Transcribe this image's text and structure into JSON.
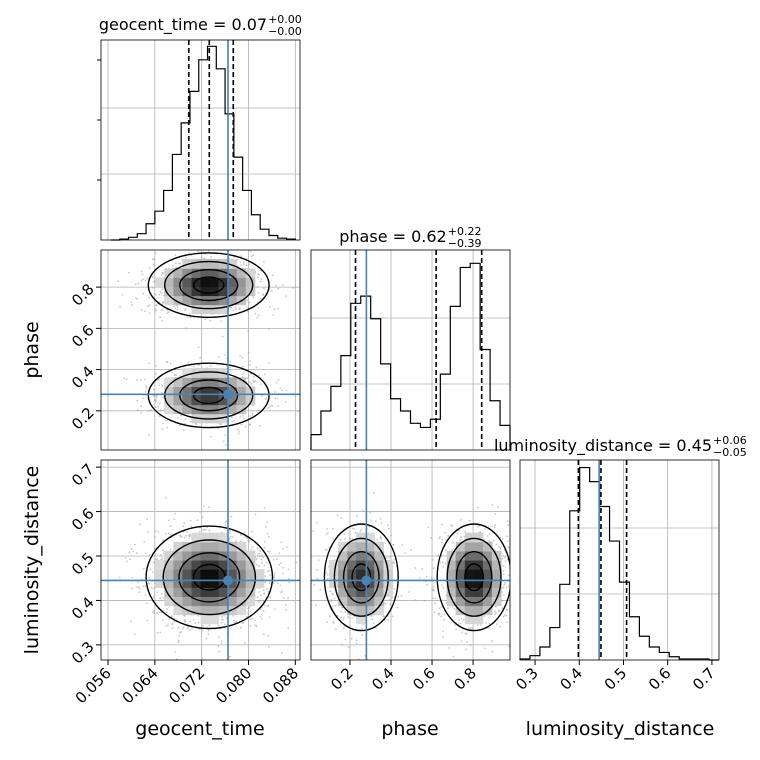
{
  "chart_data": {
    "type": "corner",
    "parameters": [
      "geocent_time",
      "phase",
      "luminosity_distance"
    ],
    "truths": {
      "geocent_time": 0.0765,
      "phase": 0.28,
      "luminosity_distance": 0.445
    },
    "titles": [
      {
        "param": "geocent_time",
        "name": "geocent_time",
        "median": "0.07",
        "plus": "+0.00",
        "minus": "−0.00"
      },
      {
        "param": "phase",
        "name": "phase",
        "median": "0.62",
        "plus": "+0.22",
        "minus": "−0.39"
      },
      {
        "param": "luminosity_distance",
        "name": "luminosity_distance",
        "median": "0.45",
        "plus": "+0.06",
        "minus": "−0.05"
      }
    ],
    "axes": {
      "geocent_time": {
        "range": [
          0.0548,
          0.0888
        ],
        "ticks": [
          "0.056",
          "0.064",
          "0.072",
          "0.080",
          "0.088"
        ]
      },
      "phase": {
        "range": [
          0.01,
          0.98
        ],
        "ticks": [
          "0.2",
          "0.4",
          "0.6",
          "0.8"
        ]
      },
      "luminosity_distance": {
        "range": [
          0.266,
          0.716
        ],
        "ticks": [
          "0.3",
          "0.4",
          "0.5",
          "0.6",
          "0.7"
        ]
      }
    },
    "histograms": [
      {
        "param": "geocent_time",
        "bin_edges": [
          0.0565,
          0.058,
          0.0595,
          0.061,
          0.0625,
          0.064,
          0.0655,
          0.067,
          0.0685,
          0.07,
          0.0715,
          0.073,
          0.0745,
          0.076,
          0.0775,
          0.079,
          0.0805,
          0.082,
          0.0835,
          0.085,
          0.0865,
          0.088
        ],
        "counts": [
          0,
          1,
          3,
          7,
          18,
          32,
          55,
          95,
          130,
          165,
          200,
          215,
          190,
          140,
          92,
          55,
          28,
          12,
          5,
          2,
          1
        ],
        "quantiles": [
          0.0698,
          0.0733,
          0.0774
        ],
        "max": 222
      },
      {
        "param": "phase",
        "bin_edges": [
          0.01,
          0.0585,
          0.107,
          0.1555,
          0.204,
          0.2525,
          0.301,
          0.3495,
          0.398,
          0.4465,
          0.495,
          0.5435,
          0.592,
          0.6405,
          0.689,
          0.7375,
          0.786,
          0.8345,
          0.883,
          0.9315,
          0.98
        ],
        "counts": [
          15,
          38,
          62,
          92,
          143,
          150,
          128,
          84,
          50,
          38,
          26,
          22,
          30,
          74,
          140,
          178,
          182,
          98,
          48,
          24
        ],
        "quantiles": [
          0.227,
          0.62,
          0.842
        ],
        "max": 195
      },
      {
        "param": "luminosity_distance",
        "bin_edges": [
          0.266,
          0.2885,
          0.311,
          0.3335,
          0.356,
          0.3785,
          0.401,
          0.4235,
          0.446,
          0.4685,
          0.491,
          0.5135,
          0.536,
          0.5585,
          0.581,
          0.6035,
          0.626,
          0.6485,
          0.671,
          0.6935,
          0.716
        ],
        "counts": [
          1,
          4,
          12,
          30,
          70,
          138,
          178,
          165,
          142,
          110,
          72,
          40,
          22,
          12,
          7,
          3,
          1,
          1,
          1,
          0
        ],
        "quantiles": [
          0.398,
          0.449,
          0.507
        ],
        "max": 185
      }
    ],
    "density_2d": [
      {
        "x": "geocent_time",
        "y": "phase",
        "modes": [
          {
            "cx": 0.0732,
            "cy": 0.81,
            "sx": 0.0043,
            "sy": 0.065,
            "w": 1.0
          },
          {
            "cx": 0.0732,
            "cy": 0.275,
            "sx": 0.0043,
            "sy": 0.065,
            "w": 0.85
          }
        ]
      },
      {
        "x": "geocent_time",
        "y": "luminosity_distance",
        "modes": [
          {
            "cx": 0.0733,
            "cy": 0.452,
            "sx": 0.0045,
            "sy": 0.048,
            "w": 1.0
          }
        ]
      },
      {
        "x": "phase",
        "y": "luminosity_distance",
        "modes": [
          {
            "cx": 0.255,
            "cy": 0.452,
            "sx": 0.075,
            "sy": 0.05,
            "w": 0.85
          },
          {
            "cx": 0.805,
            "cy": 0.452,
            "sx": 0.075,
            "sy": 0.05,
            "w": 1.0
          }
        ]
      }
    ],
    "xlabels": [
      "geocent_time",
      "phase",
      "luminosity_distance"
    ],
    "ylabels": [
      "phase",
      "luminosity_distance"
    ],
    "colors": {
      "truth": "#4682b4",
      "hist": "#000000",
      "grid": "#b0b0b0",
      "scatter": "#9a9a9a"
    },
    "grid": true
  }
}
